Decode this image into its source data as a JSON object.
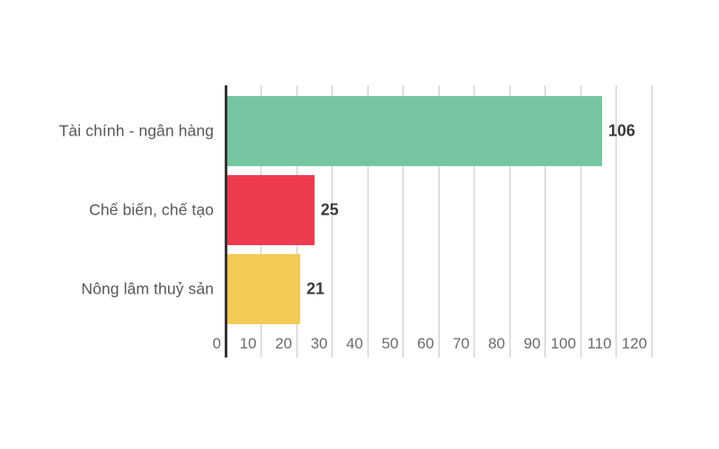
{
  "chart_data": {
    "type": "bar",
    "orientation": "horizontal",
    "title": "",
    "categories": [
      "Tài chính - ngân hàng",
      "Chế biến, chế tạo",
      "Nông lâm thuỷ sản"
    ],
    "values": [
      106,
      25,
      21
    ],
    "value_labels": [
      "106",
      "25",
      "21"
    ],
    "bar_colors": [
      "#75C6A0",
      "#EE3B4E",
      "#F3CB56"
    ],
    "x_ticks": [
      0,
      10,
      20,
      30,
      40,
      50,
      60,
      70,
      80,
      90,
      100,
      110,
      120
    ],
    "xlim": [
      0,
      120
    ],
    "grid": true,
    "legend": false,
    "colors": {
      "background": "#ffffff",
      "grid_line": "#c8c8c8",
      "axis_line": "#343434",
      "category_label": "#58585a",
      "value_label": "#3a3a3a",
      "tick_label": "#6b6b6b"
    }
  }
}
